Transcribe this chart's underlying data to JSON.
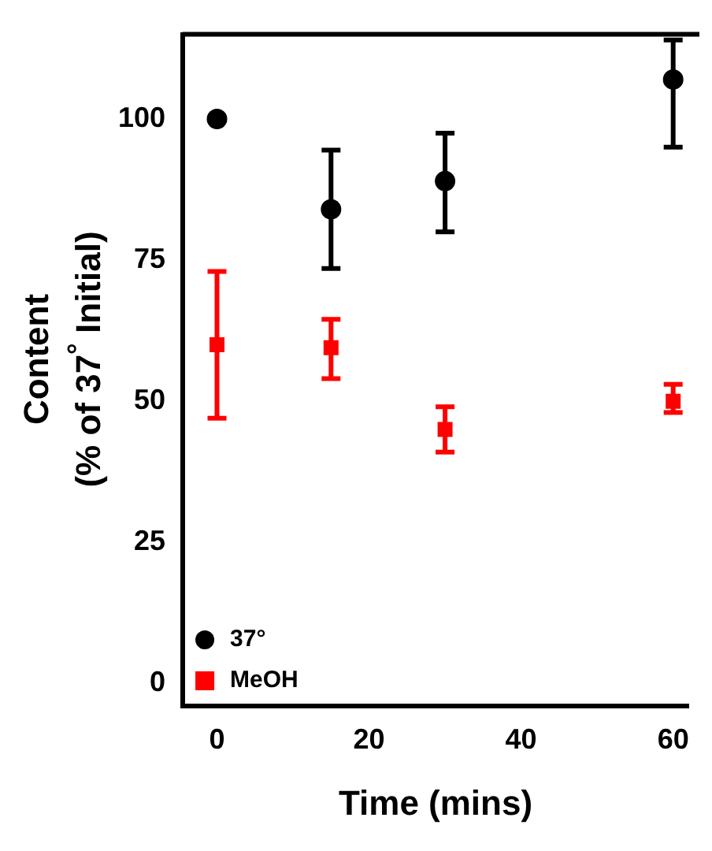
{
  "chart_data": {
    "type": "scatter",
    "xlabel": "Time (mins)",
    "ylabel": "Content\n(% of 37$^{°}$ Initial)",
    "xlim": [
      -4.5,
      62
    ],
    "xticks": [
      0,
      20,
      40,
      60
    ],
    "ylim": [
      -4,
      115
    ],
    "yticks": [
      0,
      25,
      50,
      75,
      100
    ],
    "grid": false,
    "legend": "bottom left",
    "series": [
      {
        "name": "37°",
        "color": "#000000",
        "marker": "circle",
        "x": [
          0,
          15,
          30,
          60
        ],
        "values": [
          100,
          84,
          89,
          107
        ],
        "errors": [
          null,
          [
            73.5,
            94.5
          ],
          [
            80,
            97.5
          ],
          [
            95,
            114
          ]
        ]
      },
      {
        "name": "MeOH",
        "color": "#ff0000",
        "marker": "square",
        "x": [
          0,
          15,
          30,
          60
        ],
        "values": [
          60,
          59.5,
          45,
          50
        ],
        "errors": [
          [
            47,
            73
          ],
          [
            54,
            64.5
          ],
          [
            41,
            49
          ],
          [
            48,
            53
          ]
        ]
      }
    ]
  }
}
